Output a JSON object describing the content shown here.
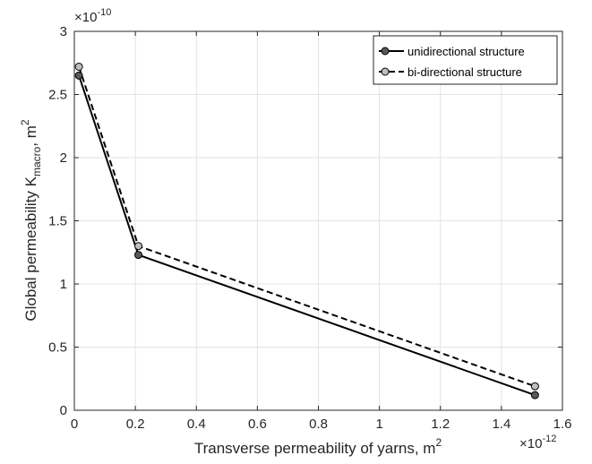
{
  "chart_data": {
    "type": "line",
    "x_axis": {
      "label": "Transverse permeability of yarns, m",
      "label_sup": "2",
      "multiplier_base": "×10",
      "multiplier_exp": "-12",
      "lim": [
        0,
        1.6
      ],
      "ticks": [
        0,
        0.2,
        0.4,
        0.6,
        0.8,
        1,
        1.2,
        1.4,
        1.6
      ],
      "tick_labels": [
        "0",
        "0.2",
        "0.4",
        "0.6",
        "0.8",
        "1",
        "1.2",
        "1.4",
        "1.6"
      ]
    },
    "y_axis": {
      "label_pre": "Global permeability K",
      "label_sub": "macro",
      "label_post": ", m",
      "label_sup": "2",
      "multiplier_base": "×10",
      "multiplier_exp": "-10",
      "lim": [
        0,
        3
      ],
      "ticks": [
        0,
        0.5,
        1,
        1.5,
        2,
        2.5,
        3
      ],
      "tick_labels": [
        "0",
        "0.5",
        "1",
        "1.5",
        "2",
        "2.5",
        "3"
      ]
    },
    "grid": true,
    "legend_position": "top-right",
    "series": [
      {
        "name": "unidirectional structure",
        "line_style": "solid",
        "line_color": "#000000",
        "marker_fill": "#595959",
        "x": [
          0.015,
          0.21,
          1.51
        ],
        "y": [
          2.65,
          1.23,
          0.12
        ]
      },
      {
        "name": "bi-directional structure",
        "line_style": "dashed",
        "line_color": "#000000",
        "marker_fill": "#bfbfbf",
        "x": [
          0.015,
          0.21,
          1.51
        ],
        "y": [
          2.72,
          1.3,
          0.19
        ]
      }
    ]
  }
}
